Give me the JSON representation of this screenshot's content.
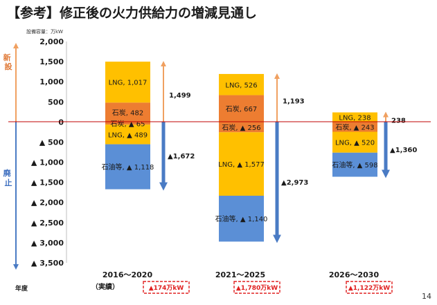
{
  "page": {
    "title": "【参考】修正後の火力供給力の増減見通し",
    "page_number": "14"
  },
  "colors": {
    "lng": "#FFC000",
    "coal": "#ED7D31",
    "oil": "#5B8FD6",
    "arrow_up": "#F0A060",
    "arrow_down": "#4A7BC4",
    "zero_line": "#C00000",
    "badge_border": "#E02020",
    "badge_text": "#E02020"
  },
  "chart_data": {
    "type": "bar",
    "unit_label": "設備容量：万kW",
    "ylim": [
      -3500,
      2000
    ],
    "yticks": [
      {
        "value": 2000,
        "label": "2,000"
      },
      {
        "value": 1500,
        "label": "1,500"
      },
      {
        "value": 1000,
        "label": "1,000"
      },
      {
        "value": 500,
        "label": "500"
      },
      {
        "value": 0,
        "label": "0"
      },
      {
        "value": -500,
        "label": "▲ 500"
      },
      {
        "value": -1000,
        "label": "▲ 1,000"
      },
      {
        "value": -1500,
        "label": "▲ 1,500"
      },
      {
        "value": -2000,
        "label": "▲ 2,000"
      },
      {
        "value": -2500,
        "label": "▲ 2,500"
      },
      {
        "value": -3000,
        "label": "▲ 3,000"
      },
      {
        "value": -3500,
        "label": "▲ 3,500"
      }
    ],
    "side_labels": {
      "new": "新設",
      "retire": "廃止"
    },
    "x_axis_label": "年度",
    "categories": [
      "2016～2020",
      "2021～2025",
      "2026～2030"
    ],
    "sub_labels": [
      "（実績）",
      "",
      ""
    ],
    "badges": [
      "▲174万kW",
      "▲1,780万kW",
      "▲1,122万kW"
    ],
    "groups": [
      {
        "category": "2016～2020",
        "segments": [
          {
            "fuel": "coal",
            "value": 482,
            "label": "石炭, 482"
          },
          {
            "fuel": "lng",
            "value": 1017,
            "label": "LNG, 1,017"
          },
          {
            "fuel": "coal",
            "value": -65,
            "label": "石炭, ▲ 65"
          },
          {
            "fuel": "lng",
            "value": -489,
            "label": "LNG, ▲ 489"
          },
          {
            "fuel": "oil",
            "value": -1118,
            "label": "石油等, ▲ 1,118"
          }
        ],
        "new_total": 1499,
        "new_total_label": "1,499",
        "retire_total": -1672,
        "retire_total_label": "▲1,672"
      },
      {
        "category": "2021～2025",
        "segments": [
          {
            "fuel": "coal",
            "value": 667,
            "label": "石炭, 667"
          },
          {
            "fuel": "lng",
            "value": 526,
            "label": "LNG, 526"
          },
          {
            "fuel": "coal",
            "value": -256,
            "label": "石炭, ▲ 256"
          },
          {
            "fuel": "lng",
            "value": -1577,
            "label": "LNG, ▲ 1,577"
          },
          {
            "fuel": "oil",
            "value": -1140,
            "label": "石油等, ▲ 1,140"
          }
        ],
        "new_total": 1193,
        "new_total_label": "1,193",
        "retire_total": -2973,
        "retire_total_label": "▲2,973"
      },
      {
        "category": "2026～2030",
        "segments": [
          {
            "fuel": "lng",
            "value": 238,
            "label": "LNG, 238"
          },
          {
            "fuel": "coal",
            "value": -243,
            "label": "石炭, ▲ 243"
          },
          {
            "fuel": "lng",
            "value": -520,
            "label": "LNG, ▲ 520"
          },
          {
            "fuel": "oil",
            "value": -598,
            "label": "石油等, ▲ 598"
          }
        ],
        "new_total": 238,
        "new_total_label": "238",
        "retire_total": -1360,
        "retire_total_label": "▲1,360"
      }
    ]
  }
}
